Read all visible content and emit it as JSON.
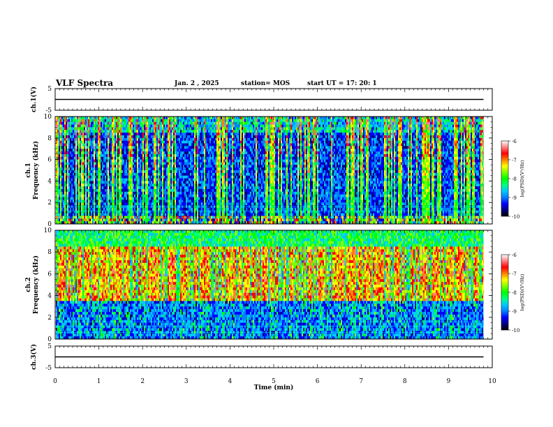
{
  "header": {
    "title": "VLF Spectra",
    "date": "Jan. 2 , 2025",
    "station": "station= MOS",
    "start": "start UT = 17: 20: 1"
  },
  "colors": {
    "colormap": [
      "#000000",
      "#000080",
      "#0000ff",
      "#0080ff",
      "#00c8ff",
      "#00ff80",
      "#00ff00",
      "#80ff00",
      "#ffff00",
      "#ff8000",
      "#ff0000",
      "#ff8080",
      "#ffffff"
    ]
  },
  "chart_data": [
    {
      "id": "ch1-waveform",
      "type": "line",
      "ylabel": "ch.1(V)",
      "ylim": [
        -5,
        5
      ],
      "yticks": [
        "5",
        "-5"
      ],
      "series": [
        {
          "x": [
            0,
            9.8
          ],
          "values": [
            0,
            0
          ]
        }
      ]
    },
    {
      "id": "ch1-spectrogram",
      "type": "heatmap",
      "ylabel_lines": [
        "ch.1",
        "Frequency (kHz)"
      ],
      "ylim": [
        0,
        10
      ],
      "yticks": [
        "0",
        "2",
        "4",
        "6",
        "8",
        "10"
      ],
      "xlim": [
        0,
        9.8
      ],
      "colorbar": {
        "label": "log(PSD)(V²/Hz)",
        "range": [
          -10,
          -6
        ],
        "ticks": [
          "-6",
          "-7",
          "-8",
          "-9",
          "-10"
        ]
      }
    },
    {
      "id": "ch2-spectrogram",
      "type": "heatmap",
      "ylabel_lines": [
        "ch.2",
        "Frequency (kHz)"
      ],
      "ylim": [
        0,
        10
      ],
      "yticks": [
        "0",
        "2",
        "4",
        "6",
        "8",
        "10"
      ],
      "xlim": [
        0,
        9.8
      ],
      "colorbar": {
        "label": "log(PSD)(V²/Hz)",
        "range": [
          -10,
          -6
        ],
        "ticks": [
          "-6",
          "-7",
          "-8",
          "-9",
          "-10"
        ]
      }
    },
    {
      "id": "ch3-waveform",
      "type": "line",
      "ylabel": "ch.3(V)",
      "ylim": [
        -5,
        5
      ],
      "yticks": [
        "5",
        "-5"
      ],
      "series": [
        {
          "x": [
            0,
            9.8
          ],
          "values": [
            0,
            0
          ]
        }
      ]
    }
  ],
  "xaxis": {
    "label": "Time (min)",
    "range": [
      0,
      10
    ],
    "ticks": [
      "0",
      "1",
      "2",
      "3",
      "4",
      "5",
      "6",
      "7",
      "8",
      "9",
      "10"
    ]
  }
}
